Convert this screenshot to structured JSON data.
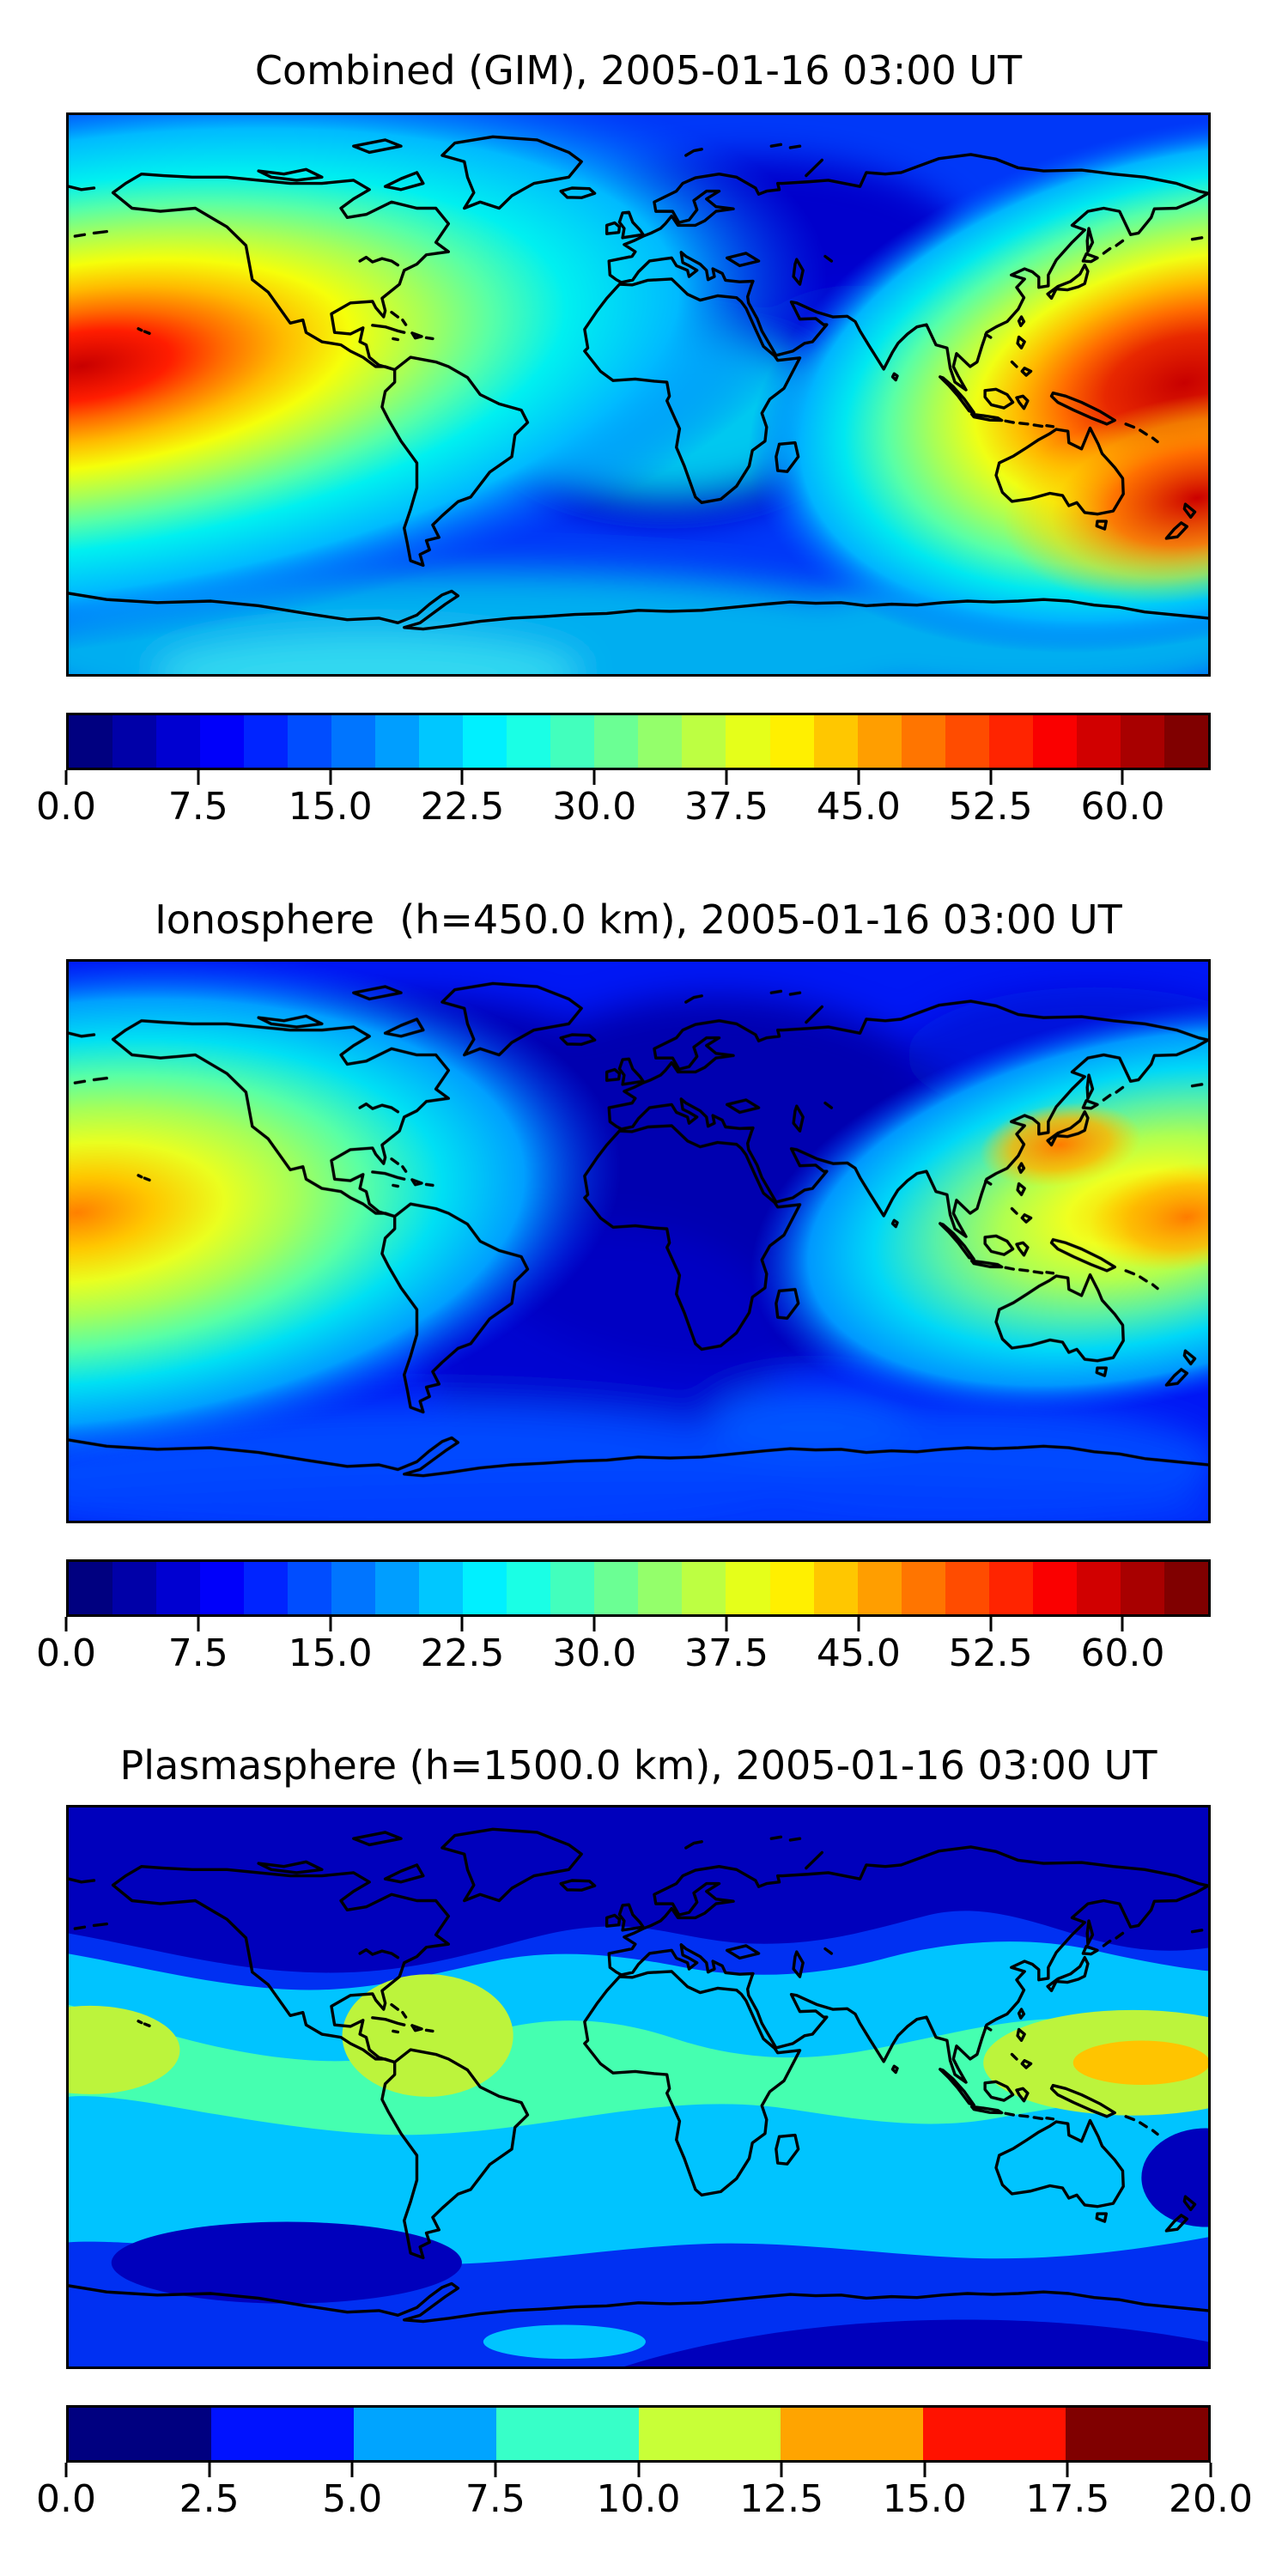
{
  "page": {
    "background": "#ffffff",
    "description": "Three stacked global TEC contour maps with jet colorbars"
  },
  "chart_data": [
    {
      "type": "heatmap",
      "title": "Combined (GIM), 2005-01-16 03:00 UT",
      "projection": "equirectangular world map, coastlines drawn in black, no axis tick labels",
      "colormap": "jet",
      "value_range": [
        0,
        65
      ],
      "contour_interval": 2.5,
      "colorbar": {
        "min": 0,
        "max": 65,
        "n_segments": 26,
        "tick_values": [
          0,
          7.5,
          15,
          22.5,
          30,
          37.5,
          45,
          52.5,
          60
        ],
        "tick_labels": [
          "0.0",
          "7.5",
          "15.0",
          "22.5",
          "30.0",
          "37.5",
          "45.0",
          "52.5",
          "60.0"
        ],
        "orientation": "horizontal",
        "position": "below map"
      },
      "features": [
        {
          "region": "equatorial anomaly crest, eastern Pacific at left map edge (~5°S-20°S)",
          "approx_peak": 62
        },
        {
          "region": "equatorial anomaly, western Pacific / Oceania (right side, two red cores)",
          "approx_peak": 60
        },
        {
          "region": "high-latitude minimum over North America and central Atlantic/Africa",
          "approx_min": 5
        },
        {
          "region": "southern mid-latitude cyan band (~50°S-70°S)",
          "approx_value": 20
        }
      ]
    },
    {
      "type": "heatmap",
      "title": "Ionosphere  (h=450.0 km), 2005-01-16 03:00 UT",
      "projection": "equirectangular world map, coastlines drawn in black, no axis tick labels",
      "colormap": "jet",
      "value_range": [
        0,
        65
      ],
      "contour_interval": 2.5,
      "colorbar": {
        "min": 0,
        "max": 65,
        "n_segments": 26,
        "tick_values": [
          0,
          7.5,
          15,
          22.5,
          30,
          37.5,
          45,
          52.5,
          60
        ],
        "tick_labels": [
          "0.0",
          "7.5",
          "15.0",
          "22.5",
          "30.0",
          "37.5",
          "45.0",
          "52.5",
          "60.0"
        ],
        "orientation": "horizontal",
        "position": "below map"
      },
      "features": [
        {
          "region": "eastern Pacific maximum at left map edge (~10°S)",
          "approx_peak": 50
        },
        {
          "region": "western Pacific maximum east of Philippines/New Guinea (two orange cores)",
          "approx_peak": 48
        },
        {
          "region": "broad minimum over North America, Europe and Africa",
          "approx_min": 4
        }
      ]
    },
    {
      "type": "heatmap",
      "title": "Plasmasphere (h=1500.0 km), 2005-01-16 03:00 UT",
      "projection": "equirectangular world map, coastlines drawn in black, no axis tick labels",
      "colormap": "jet",
      "value_range": [
        0,
        20
      ],
      "contour_interval": 2.5,
      "colorbar": {
        "min": 0,
        "max": 20,
        "n_segments": 8,
        "tick_values": [
          0,
          2.5,
          5,
          7.5,
          10,
          12.5,
          15,
          17.5,
          20
        ],
        "tick_labels": [
          "0.0",
          "2.5",
          "5.0",
          "7.5",
          "10.0",
          "12.5",
          "15.0",
          "17.5",
          "20.0"
        ],
        "orientation": "horizontal",
        "position": "below map"
      },
      "features": [
        {
          "region": "plasmaspheric equatorial belt (spring-green band)",
          "approx_range": "7.5-10"
        },
        {
          "region": "western Pacific maximum (gold core)",
          "approx_peak": 14
        },
        {
          "region": "eastern South America / Atlantic local maximum",
          "approx_peak": 11
        },
        {
          "region": "polar caps and night-side lows (dark navy)",
          "approx_range": "0-2.5"
        }
      ]
    }
  ]
}
